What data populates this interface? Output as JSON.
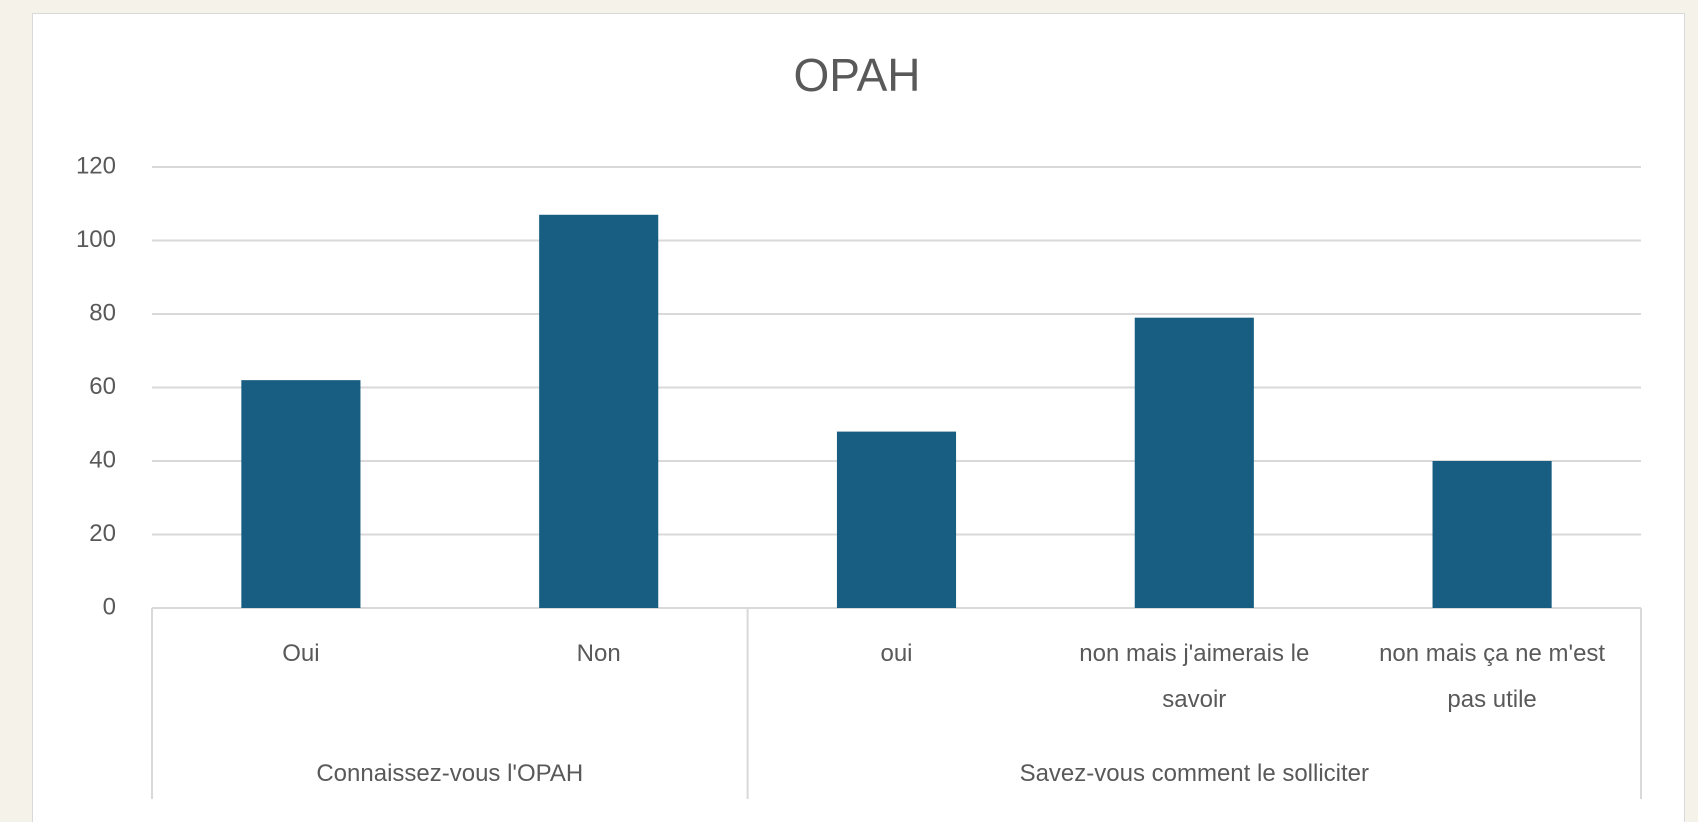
{
  "chart_data": {
    "type": "bar",
    "title": "OPAH",
    "groups": [
      {
        "label": "Connaissez-vous l'OPAH",
        "categories": [
          "Oui",
          "Non"
        ],
        "values": [
          62,
          107
        ]
      },
      {
        "label": "Savez-vous comment le solliciter",
        "categories": [
          "oui",
          "non mais j'aimerais le savoir",
          "non mais ça ne m'est pas utile"
        ],
        "values": [
          48,
          79,
          40
        ]
      }
    ],
    "color": "#175e82",
    "ylim": [
      0,
      120
    ],
    "yticks": [
      0,
      20,
      40,
      60,
      80,
      100,
      120
    ],
    "grid": true
  }
}
